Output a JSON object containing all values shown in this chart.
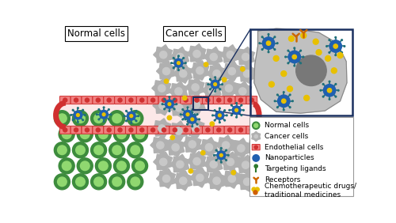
{
  "bg_color": "#ffffff",
  "normal_cell_outer": "#3d8c3d",
  "normal_cell_inner": "#90d870",
  "cancer_cell_color": "#b0b0b0",
  "cancer_cell_inner": "#c8c8c8",
  "endo_fill": "#f08080",
  "endo_border": "#d03030",
  "endo_dot": "#d03030",
  "vessel_fill": "#fce8e8",
  "nano_core": "#2060b0",
  "nano_spoke": "#20707a",
  "nano_tip": "#20707a",
  "ligand_color": "#2e7a2e",
  "receptor_color": "#cc6600",
  "drug_yellow": "#e8c000",
  "drug_orange": "#d06000",
  "zoom_bg": "#c0c0c0",
  "zoom_nucleus": "#787878",
  "inset_border": "#1a3060",
  "title_normal": "Normal cells",
  "title_cancer": "Cancer cells",
  "legend_items": [
    "Normal cells",
    "Cancer cells",
    "Endothelial cells",
    "Nanoparticles",
    "Targeting ligands",
    "Receptors",
    "Chemotherapeutic drugs/\ntraditional medicines"
  ]
}
